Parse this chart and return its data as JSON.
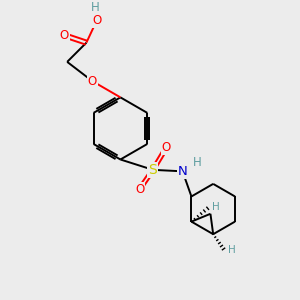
{
  "bg_color": "#ececec",
  "atom_colors": {
    "O": "#ff0000",
    "N": "#0000cc",
    "S": "#cccc00",
    "H": "#5f9ea0"
  },
  "bond_color": "#000000",
  "lw": 1.4,
  "fs": 8.5
}
